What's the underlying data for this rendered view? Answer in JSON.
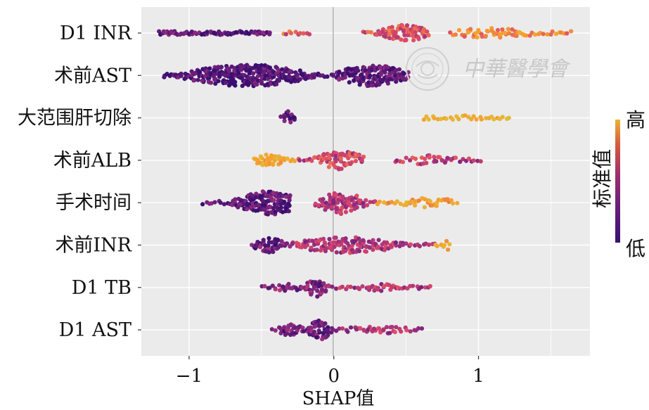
{
  "chart_data": {
    "type": "scatter",
    "subtype": "beeswarm",
    "xlabel": "SHAP值",
    "xlim": [
      -1.33,
      1.77
    ],
    "xticks": [
      -1,
      0,
      1
    ],
    "xtick_labels": [
      "−1",
      "0",
      "1"
    ],
    "grid": true,
    "features": [
      {
        "label": "D1 INR",
        "segments": [
          [
            -1.2,
            -0.43,
            -1.0,
            -0.87,
            0.1,
            2
          ],
          [
            -0.35,
            -0.15,
            0.1,
            0.3,
            0.55,
            0.9
          ],
          [
            0.2,
            0.66,
            0.4,
            0.49,
            0.5,
            1.7
          ],
          [
            0.8,
            1.65,
            0.25,
            1.1,
            0.7,
            1.0
          ]
        ]
      },
      {
        "label": "术前AST",
        "segments": [
          [
            -1.17,
            -0.1,
            0.55,
            -0.6,
            0.05,
            1.9
          ],
          [
            -0.1,
            0.52,
            0.55,
            0.27,
            0.1,
            1.8
          ],
          [
            0.52,
            0.54,
            0.05,
            0.53,
            0.15,
            1.2
          ]
        ]
      },
      {
        "label": "大范围肝切除",
        "segments": [
          [
            -0.36,
            -0.26,
            0.35,
            -0.31,
            0.1,
            1.6
          ],
          [
            0.62,
            1.23,
            0.12,
            0.92,
            0.95,
            0.3
          ]
        ]
      },
      {
        "label": "术前ALB",
        "segments": [
          [
            -0.55,
            -0.25,
            0.3,
            -0.45,
            0.85,
            1.8
          ],
          [
            -0.25,
            0.2,
            0.45,
            0.05,
            0.45,
            1.3
          ],
          [
            0.42,
            1.02,
            0.25,
            0.7,
            0.4,
            0.8
          ]
        ]
      },
      {
        "label": "手术时间",
        "segments": [
          [
            -0.9,
            -0.3,
            0.6,
            -0.45,
            0.1,
            1.8
          ],
          [
            -0.12,
            0.3,
            0.55,
            0.05,
            0.35,
            1.4
          ],
          [
            0.3,
            0.87,
            0.25,
            0.65,
            0.8,
            1.0
          ]
        ]
      },
      {
        "label": "术前INR",
        "segments": [
          [
            -0.57,
            -0.28,
            0.38,
            -0.45,
            0.15,
            1.6
          ],
          [
            -0.28,
            0.7,
            0.4,
            0.1,
            0.35,
            1.3
          ],
          [
            0.7,
            0.82,
            0.25,
            0.78,
            0.85,
            0.8
          ]
        ]
      },
      {
        "label": "D1 TB",
        "segments": [
          [
            -0.5,
            -0.2,
            0.18,
            -0.32,
            0.2,
            1.5
          ],
          [
            -0.2,
            0.0,
            0.45,
            -0.12,
            0.2,
            1.7
          ],
          [
            0.02,
            0.69,
            0.18,
            0.35,
            0.35,
            1.1
          ]
        ]
      },
      {
        "label": "D1 AST",
        "segments": [
          [
            -0.42,
            -0.2,
            0.3,
            -0.3,
            0.15,
            1.6
          ],
          [
            -0.2,
            0.0,
            0.5,
            -0.1,
            0.15,
            1.8
          ],
          [
            0.0,
            0.63,
            0.2,
            0.3,
            0.35,
            1.1
          ]
        ]
      }
    ],
    "colorbar": {
      "title": "标准值",
      "high_label": "高",
      "low_label": "低",
      "colors": [
        "#3b0f70",
        "#8c2981",
        "#de4968",
        "#f79d2e",
        "#e4b83a"
      ]
    }
  },
  "watermark": {
    "text": "中華醫學會"
  }
}
